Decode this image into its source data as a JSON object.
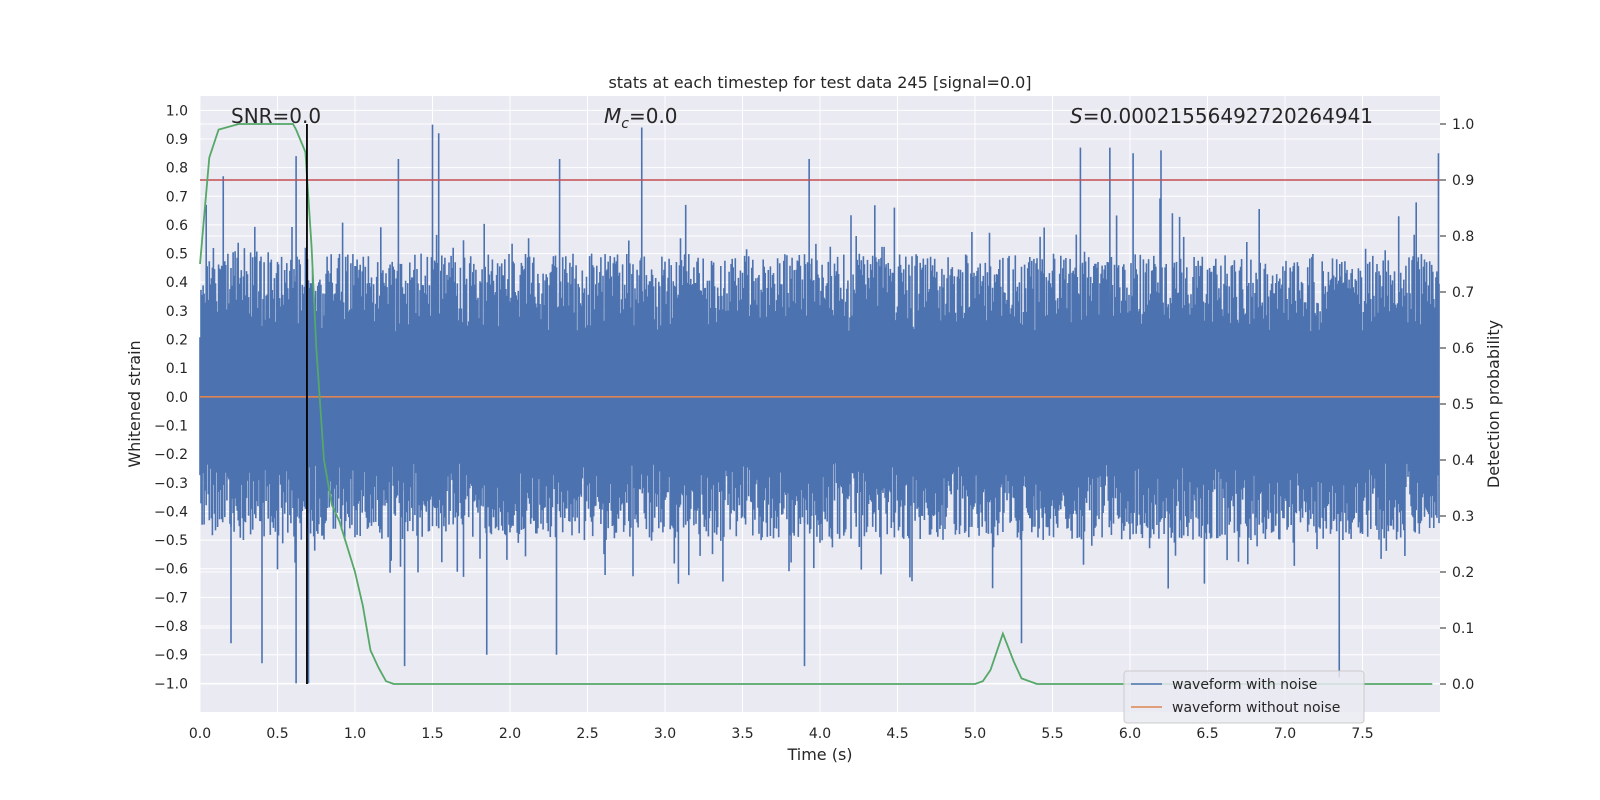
{
  "chart_data": {
    "type": "line",
    "title": "stats at each timestep for test data 245 [signal=0.0]",
    "xlabel": "Time (s)",
    "ylabel": "Whitened strain",
    "ylabel_right": "Detection probability",
    "xlim": [
      0.0,
      8.0
    ],
    "ylim": [
      -1.1,
      1.05
    ],
    "ylim_right": [
      -0.05,
      1.05
    ],
    "x_ticks": [
      0.0,
      0.5,
      1.0,
      1.5,
      2.0,
      2.5,
      3.0,
      3.5,
      4.0,
      4.5,
      5.0,
      5.5,
      6.0,
      6.5,
      7.0,
      7.5
    ],
    "y_ticks": [
      -1.0,
      -0.9,
      -0.8,
      -0.7,
      -0.6,
      -0.5,
      -0.4,
      -0.3,
      -0.2,
      -0.1,
      0.0,
      0.1,
      0.2,
      0.3,
      0.4,
      0.5,
      0.6,
      0.7,
      0.8,
      0.9,
      1.0
    ],
    "y_right_ticks": [
      0.0,
      0.1,
      0.2,
      0.3,
      0.4,
      0.5,
      0.6,
      0.7,
      0.8,
      0.9,
      1.0
    ],
    "grid": true,
    "annotations": {
      "snr": "SNR=0.0",
      "mc_symbol": "M",
      "mc_sub": "c",
      "mc_value": "=0.0",
      "s_symbol": "S",
      "s_value": "=0.00021556492720264941"
    },
    "legend": {
      "placement": "lower-right",
      "entries": [
        "waveform with noise",
        "waveform without noise"
      ]
    },
    "series": [
      {
        "name": "waveform with noise",
        "color": "#4c72b0",
        "axis": "left",
        "envelope": {
          "x": [
            0.0,
            0.25,
            0.5,
            0.75,
            1.0,
            1.25,
            1.5,
            1.75,
            2.0,
            2.25,
            2.5,
            2.75,
            3.0,
            3.25,
            3.5,
            3.75,
            4.0,
            4.25,
            4.5,
            4.75,
            5.0,
            5.25,
            5.5,
            5.75,
            6.0,
            6.25,
            6.5,
            6.75,
            7.0,
            7.25,
            7.5,
            7.75,
            8.0
          ],
          "typical_max": [
            0.45,
            0.55,
            0.5,
            0.5,
            0.5,
            0.5,
            0.5,
            0.5,
            0.5,
            0.5,
            0.5,
            0.5,
            0.5,
            0.5,
            0.5,
            0.5,
            0.5,
            0.5,
            0.5,
            0.5,
            0.5,
            0.5,
            0.5,
            0.5,
            0.5,
            0.5,
            0.5,
            0.5,
            0.5,
            0.5,
            0.5,
            0.5,
            0.5
          ],
          "typical_min": [
            -0.45,
            -0.5,
            -0.5,
            -0.5,
            -0.5,
            -0.5,
            -0.5,
            -0.5,
            -0.5,
            -0.5,
            -0.5,
            -0.5,
            -0.5,
            -0.5,
            -0.5,
            -0.5,
            -0.5,
            -0.5,
            -0.5,
            -0.5,
            -0.5,
            -0.5,
            -0.5,
            -0.5,
            -0.5,
            -0.5,
            -0.5,
            -0.5,
            -0.5,
            -0.5,
            -0.5,
            -0.5,
            -0.5
          ]
        },
        "peaks": [
          {
            "x": 0.62,
            "y": 0.84
          },
          {
            "x": 1.28,
            "y": 0.83
          },
          {
            "x": 1.5,
            "y": 0.95
          },
          {
            "x": 1.54,
            "y": 0.92
          },
          {
            "x": 2.32,
            "y": 0.83
          },
          {
            "x": 2.85,
            "y": 0.94
          },
          {
            "x": 3.93,
            "y": 0.83
          },
          {
            "x": 5.68,
            "y": 0.87
          },
          {
            "x": 5.87,
            "y": 0.87
          },
          {
            "x": 6.02,
            "y": 0.85
          },
          {
            "x": 6.2,
            "y": 0.86
          },
          {
            "x": 7.99,
            "y": 0.85
          },
          {
            "x": 0.04,
            "y": 0.67
          },
          {
            "x": 0.15,
            "y": 0.77
          }
        ],
        "troughs": [
          {
            "x": 0.4,
            "y": -0.93
          },
          {
            "x": 0.62,
            "y": -1.0
          },
          {
            "x": 0.7,
            "y": -1.0
          },
          {
            "x": 1.32,
            "y": -0.94
          },
          {
            "x": 1.85,
            "y": -0.9
          },
          {
            "x": 2.3,
            "y": -0.9
          },
          {
            "x": 3.9,
            "y": -0.94
          },
          {
            "x": 5.3,
            "y": -0.86
          },
          {
            "x": 7.35,
            "y": -0.98
          },
          {
            "x": 0.2,
            "y": -0.86
          }
        ]
      },
      {
        "name": "waveform without noise",
        "color": "#dd8452",
        "axis": "left",
        "x": [
          0.0,
          8.0
        ],
        "y": [
          0.0,
          0.0
        ]
      },
      {
        "name": "",
        "color": "#55a868",
        "axis": "right",
        "x": [
          0.0,
          0.06,
          0.12,
          0.25,
          0.4,
          0.5,
          0.6,
          0.62,
          0.68,
          0.72,
          0.75,
          0.8,
          0.85,
          0.9,
          1.0,
          1.05,
          1.1,
          1.15,
          1.2,
          1.25,
          1.3,
          2.0,
          3.0,
          4.0,
          4.5,
          5.0,
          5.05,
          5.1,
          5.18,
          5.25,
          5.3,
          5.4,
          6.0,
          7.0,
          7.95
        ],
        "y": [
          0.75,
          0.94,
          0.99,
          1.0,
          1.0,
          1.0,
          1.0,
          0.99,
          0.95,
          0.78,
          0.6,
          0.4,
          0.32,
          0.29,
          0.2,
          0.14,
          0.06,
          0.03,
          0.005,
          0.0,
          0.0,
          0.0,
          0.0,
          0.0,
          0.0,
          0.0,
          0.005,
          0.025,
          0.09,
          0.04,
          0.01,
          0.0,
          0.0,
          0.0,
          0.0
        ]
      }
    ],
    "threshold_line": {
      "color": "#c44e52",
      "y_right": 0.9
    },
    "vertical_marker": {
      "color": "#000000",
      "x": 0.69
    }
  }
}
